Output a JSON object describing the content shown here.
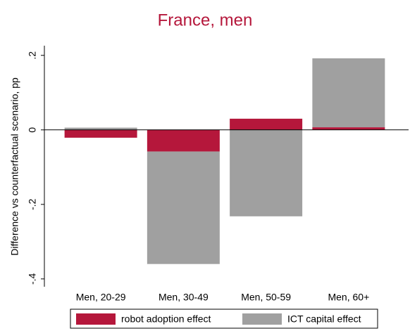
{
  "chart_data": {
    "type": "stacked_bar",
    "title": "France, men",
    "y_label": "Difference vs counterfactual scenario, pp",
    "categories": [
      "Men, 20-29",
      "Men, 30-49",
      "Men, 50-59",
      "Men, 60+"
    ],
    "series": [
      {
        "name": "robot adoption effect",
        "color": "#b5173b",
        "values": [
          -0.021,
          -0.058,
          0.03,
          0.007
        ]
      },
      {
        "name": "ICT capital effect",
        "color": "#a0a0a0",
        "values": [
          0.006,
          -0.302,
          -0.232,
          0.185
        ]
      }
    ],
    "ylim": [
      -0.421,
      0.226
    ],
    "yticks": [
      {
        "value": 0.2,
        "label": ".2"
      },
      0,
      {
        "value": -0.2,
        "label": "-.2"
      },
      {
        "value": -0.4,
        "label": "-.4"
      }
    ],
    "grid": false,
    "legend": "bottom"
  }
}
